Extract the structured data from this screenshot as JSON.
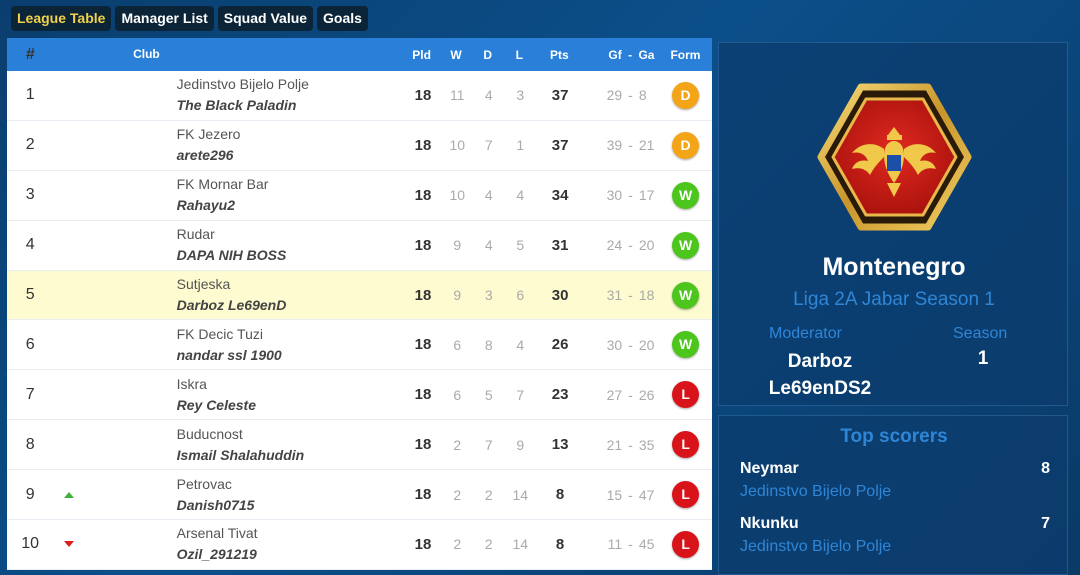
{
  "tabs": [
    {
      "label": "League Table",
      "active": true
    },
    {
      "label": "Manager List",
      "active": false
    },
    {
      "label": "Squad Value",
      "active": false
    },
    {
      "label": "Goals",
      "active": false
    }
  ],
  "table": {
    "headers": {
      "pos": "#",
      "club": "Club",
      "pld": "Pld",
      "w": "W",
      "d": "D",
      "l": "L",
      "pts": "Pts",
      "gf": "Gf",
      "sep": "-",
      "ga": "Ga",
      "form": "Form"
    },
    "rows": [
      {
        "pos": "1",
        "club": "Jedinstvo Bijelo Polje",
        "manager": "The Black Paladin",
        "pld": "18",
        "w": "11",
        "d": "4",
        "l": "3",
        "pts": "37",
        "gf": "29",
        "sep": "-",
        "ga": "8",
        "form": "D",
        "trend": ""
      },
      {
        "pos": "2",
        "club": "FK Jezero",
        "manager": "arete296",
        "pld": "18",
        "w": "10",
        "d": "7",
        "l": "1",
        "pts": "37",
        "gf": "39",
        "sep": "-",
        "ga": "21",
        "form": "D",
        "trend": ""
      },
      {
        "pos": "3",
        "club": "FK Mornar Bar",
        "manager": "Rahayu2",
        "pld": "18",
        "w": "10",
        "d": "4",
        "l": "4",
        "pts": "34",
        "gf": "30",
        "sep": "-",
        "ga": "17",
        "form": "W",
        "trend": ""
      },
      {
        "pos": "4",
        "club": "Rudar",
        "manager": "DAPA NIH BOSS",
        "pld": "18",
        "w": "9",
        "d": "4",
        "l": "5",
        "pts": "31",
        "gf": "24",
        "sep": "-",
        "ga": "20",
        "form": "W",
        "trend": ""
      },
      {
        "pos": "5",
        "club": "Sutjeska",
        "manager": "Darboz Le69enD",
        "pld": "18",
        "w": "9",
        "d": "3",
        "l": "6",
        "pts": "30",
        "gf": "31",
        "sep": "-",
        "ga": "18",
        "form": "W",
        "trend": "",
        "highlight": true
      },
      {
        "pos": "6",
        "club": "FK Decic Tuzi",
        "manager": "nandar ssl 1900",
        "pld": "18",
        "w": "6",
        "d": "8",
        "l": "4",
        "pts": "26",
        "gf": "30",
        "sep": "-",
        "ga": "20",
        "form": "W",
        "trend": ""
      },
      {
        "pos": "7",
        "club": "Iskra",
        "manager": "Rey Celeste",
        "pld": "18",
        "w": "6",
        "d": "5",
        "l": "7",
        "pts": "23",
        "gf": "27",
        "sep": "-",
        "ga": "26",
        "form": "L",
        "trend": ""
      },
      {
        "pos": "8",
        "club": "Buducnost",
        "manager": "Ismail Shalahuddin",
        "pld": "18",
        "w": "2",
        "d": "7",
        "l": "9",
        "pts": "13",
        "gf": "21",
        "sep": "-",
        "ga": "35",
        "form": "L",
        "trend": ""
      },
      {
        "pos": "9",
        "club": "Petrovac",
        "manager": "Danish0715",
        "pld": "18",
        "w": "2",
        "d": "2",
        "l": "14",
        "pts": "8",
        "gf": "15",
        "sep": "-",
        "ga": "47",
        "form": "L",
        "trend": "up"
      },
      {
        "pos": "10",
        "club": "Arsenal Tivat",
        "manager": "Ozil_291219",
        "pld": "18",
        "w": "2",
        "d": "2",
        "l": "14",
        "pts": "8",
        "gf": "11",
        "sep": "-",
        "ga": "45",
        "form": "L",
        "trend": "down"
      }
    ]
  },
  "form_colors": {
    "W": "#4cc51c",
    "D": "#f3a417",
    "L": "#d8141a"
  },
  "info": {
    "badge_icon": "montenegro-eagle-icon",
    "country": "Montenegro",
    "season_name": "Liga 2A Jabar Season 1",
    "moderator_label": "Moderator",
    "moderator_value": "Darboz Le69enDS2",
    "season_label": "Season",
    "season_value": "1"
  },
  "scorers": {
    "title": "Top scorers",
    "items": [
      {
        "name": "Neymar",
        "club": "Jedinstvo Bijelo Polje",
        "goals": "8"
      },
      {
        "name": "Nkunku",
        "club": "Jedinstvo Bijelo Polje",
        "goals": "7"
      }
    ]
  }
}
